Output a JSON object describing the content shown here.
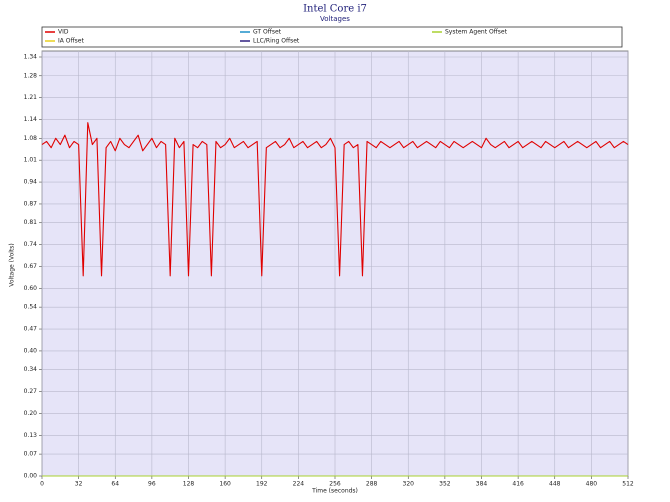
{
  "chart_data": {
    "type": "line",
    "title": "Intel Core i7",
    "subtitle": "Voltages",
    "x_label": "Time (seconds)",
    "y_label": "Voltage (Volts)",
    "xlim": [
      0,
      512
    ],
    "xticks": [
      0,
      32,
      64,
      96,
      128,
      160,
      192,
      224,
      256,
      288,
      320,
      352,
      384,
      416,
      448,
      480,
      512
    ],
    "ylim": [
      0,
      1.34
    ],
    "yticks": [
      {
        "value": 0,
        "label": "0.00"
      },
      {
        "value": 0.07,
        "label": "0.07"
      },
      {
        "value": 0.13,
        "label": "0.13"
      },
      {
        "value": 0.2,
        "label": "0.20"
      },
      {
        "value": 0.27,
        "label": "0.27"
      },
      {
        "value": 0.34,
        "label": "0.34"
      },
      {
        "value": 0.4,
        "label": "0.40"
      },
      {
        "value": 0.47,
        "label": "0.47"
      },
      {
        "value": 0.54,
        "label": "0.54"
      },
      {
        "value": 0.6,
        "label": "0.60"
      },
      {
        "value": 0.67,
        "label": "0.67"
      },
      {
        "value": 0.74,
        "label": "0.74"
      },
      {
        "value": 0.81,
        "label": "0.81"
      },
      {
        "value": 0.87,
        "label": "0.87"
      },
      {
        "value": 0.94,
        "label": "0.94"
      },
      {
        "value": 1.01,
        "label": "1.01"
      },
      {
        "value": 1.08,
        "label": "1.08"
      },
      {
        "value": 1.14,
        "label": "1.14"
      },
      {
        "value": 1.21,
        "label": "1.21"
      },
      {
        "value": 1.28,
        "label": "1.28"
      },
      {
        "value": 1.34,
        "label": "1.34"
      }
    ],
    "grid": true,
    "x": [
      0,
      4,
      8,
      12,
      16,
      20,
      24,
      28,
      32,
      36,
      40,
      44,
      48,
      52,
      56,
      60,
      64,
      68,
      72,
      76,
      80,
      84,
      88,
      92,
      96,
      100,
      104,
      108,
      112,
      116,
      120,
      124,
      128,
      132,
      136,
      140,
      144,
      148,
      152,
      156,
      160,
      164,
      168,
      172,
      176,
      180,
      184,
      188,
      192,
      196,
      200,
      204,
      208,
      212,
      216,
      220,
      224,
      228,
      232,
      236,
      240,
      244,
      248,
      252,
      256,
      260,
      264,
      268,
      272,
      276,
      280,
      284,
      288,
      292,
      296,
      300,
      304,
      308,
      312,
      316,
      320,
      324,
      328,
      332,
      336,
      340,
      344,
      348,
      352,
      356,
      360,
      364,
      368,
      372,
      376,
      380,
      384,
      388,
      392,
      396,
      400,
      404,
      408,
      412,
      416,
      420,
      424,
      428,
      432,
      436,
      440,
      444,
      448,
      452,
      456,
      460,
      464,
      468,
      472,
      476,
      480,
      484,
      488,
      492,
      496,
      500,
      504,
      508,
      512
    ],
    "series": [
      {
        "name": "VID",
        "color": "#e00000",
        "values": [
          1.06,
          1.07,
          1.05,
          1.08,
          1.06,
          1.09,
          1.05,
          1.07,
          1.06,
          0.64,
          1.13,
          1.06,
          1.08,
          0.64,
          1.05,
          1.07,
          1.04,
          1.08,
          1.06,
          1.05,
          1.07,
          1.09,
          1.04,
          1.06,
          1.08,
          1.05,
          1.07,
          1.06,
          0.64,
          1.08,
          1.05,
          1.07,
          0.64,
          1.06,
          1.05,
          1.07,
          1.06,
          0.64,
          1.07,
          1.05,
          1.06,
          1.08,
          1.05,
          1.06,
          1.07,
          1.05,
          1.06,
          1.07,
          0.64,
          1.05,
          1.06,
          1.07,
          1.05,
          1.06,
          1.08,
          1.05,
          1.06,
          1.07,
          1.05,
          1.06,
          1.07,
          1.05,
          1.06,
          1.08,
          1.05,
          0.64,
          1.06,
          1.07,
          1.05,
          1.06,
          0.64,
          1.07,
          1.06,
          1.05,
          1.07,
          1.06,
          1.05,
          1.06,
          1.07,
          1.05,
          1.06,
          1.07,
          1.05,
          1.06,
          1.07,
          1.06,
          1.05,
          1.07,
          1.06,
          1.05,
          1.07,
          1.06,
          1.05,
          1.06,
          1.07,
          1.06,
          1.05,
          1.08,
          1.06,
          1.05,
          1.06,
          1.07,
          1.05,
          1.06,
          1.07,
          1.05,
          1.06,
          1.07,
          1.06,
          1.05,
          1.07,
          1.06,
          1.05,
          1.06,
          1.07,
          1.05,
          1.06,
          1.07,
          1.06,
          1.05,
          1.06,
          1.07,
          1.05,
          1.06,
          1.07,
          1.05,
          1.06,
          1.07,
          1.06
        ]
      },
      {
        "name": "GT Offset",
        "color": "#1e90c8",
        "values": [
          0,
          0,
          0,
          0,
          0,
          0,
          0,
          0,
          0,
          0,
          0,
          0,
          0,
          0,
          0,
          0,
          0,
          0,
          0,
          0,
          0,
          0,
          0,
          0,
          0,
          0,
          0,
          0,
          0,
          0,
          0,
          0,
          0,
          0,
          0,
          0,
          0,
          0,
          0,
          0,
          0,
          0,
          0,
          0,
          0,
          0,
          0,
          0,
          0,
          0,
          0,
          0,
          0,
          0,
          0,
          0,
          0,
          0,
          0,
          0,
          0,
          0,
          0,
          0,
          0,
          0,
          0,
          0,
          0,
          0,
          0,
          0,
          0,
          0,
          0,
          0,
          0,
          0,
          0,
          0,
          0,
          0,
          0,
          0,
          0,
          0,
          0,
          0,
          0,
          0,
          0,
          0,
          0,
          0,
          0,
          0,
          0,
          0,
          0,
          0,
          0,
          0,
          0,
          0,
          0,
          0,
          0,
          0,
          0,
          0,
          0,
          0,
          0,
          0,
          0,
          0,
          0,
          0,
          0,
          0,
          0,
          0,
          0,
          0,
          0,
          0,
          0,
          0,
          0
        ]
      },
      {
        "name": "System Agent Offset",
        "color": "#a8d030",
        "values": [
          0,
          0,
          0,
          0,
          0,
          0,
          0,
          0,
          0,
          0,
          0,
          0,
          0,
          0,
          0,
          0,
          0,
          0,
          0,
          0,
          0,
          0,
          0,
          0,
          0,
          0,
          0,
          0,
          0,
          0,
          0,
          0,
          0,
          0,
          0,
          0,
          0,
          0,
          0,
          0,
          0,
          0,
          0,
          0,
          0,
          0,
          0,
          0,
          0,
          0,
          0,
          0,
          0,
          0,
          0,
          0,
          0,
          0,
          0,
          0,
          0,
          0,
          0,
          0,
          0,
          0,
          0,
          0,
          0,
          0,
          0,
          0,
          0,
          0,
          0,
          0,
          0,
          0,
          0,
          0,
          0,
          0,
          0,
          0,
          0,
          0,
          0,
          0,
          0,
          0,
          0,
          0,
          0,
          0,
          0,
          0,
          0,
          0,
          0,
          0,
          0,
          0,
          0,
          0,
          0,
          0,
          0,
          0,
          0,
          0,
          0,
          0,
          0,
          0,
          0,
          0,
          0,
          0,
          0,
          0,
          0,
          0,
          0,
          0,
          0,
          0,
          0,
          0,
          0
        ]
      },
      {
        "name": "IA Offset",
        "color": "#e8d020",
        "values": [
          0,
          0,
          0,
          0,
          0,
          0,
          0,
          0,
          0,
          0,
          0,
          0,
          0,
          0,
          0,
          0,
          0,
          0,
          0,
          0,
          0,
          0,
          0,
          0,
          0,
          0,
          0,
          0,
          0,
          0,
          0,
          0,
          0,
          0,
          0,
          0,
          0,
          0,
          0,
          0,
          0,
          0,
          0,
          0,
          0,
          0,
          0,
          0,
          0,
          0,
          0,
          0,
          0,
          0,
          0,
          0,
          0,
          0,
          0,
          0,
          0,
          0,
          0,
          0,
          0,
          0,
          0,
          0,
          0,
          0,
          0,
          0,
          0,
          0,
          0,
          0,
          0,
          0,
          0,
          0,
          0,
          0,
          0,
          0,
          0,
          0,
          0,
          0,
          0,
          0,
          0,
          0,
          0,
          0,
          0,
          0,
          0,
          0,
          0,
          0,
          0,
          0,
          0,
          0,
          0,
          0,
          0,
          0,
          0,
          0,
          0,
          0,
          0,
          0,
          0,
          0,
          0,
          0,
          0,
          0,
          0,
          0,
          0,
          0,
          0,
          0,
          0,
          0,
          0
        ]
      },
      {
        "name": "LLC/Ring Offset",
        "color": "#302080",
        "values": [
          0,
          0,
          0,
          0,
          0,
          0,
          0,
          0,
          0,
          0,
          0,
          0,
          0,
          0,
          0,
          0,
          0,
          0,
          0,
          0,
          0,
          0,
          0,
          0,
          0,
          0,
          0,
          0,
          0,
          0,
          0,
          0,
          0,
          0,
          0,
          0,
          0,
          0,
          0,
          0,
          0,
          0,
          0,
          0,
          0,
          0,
          0,
          0,
          0,
          0,
          0,
          0,
          0,
          0,
          0,
          0,
          0,
          0,
          0,
          0,
          0,
          0,
          0,
          0,
          0,
          0,
          0,
          0,
          0,
          0,
          0,
          0,
          0,
          0,
          0,
          0,
          0,
          0,
          0,
          0,
          0,
          0,
          0,
          0,
          0,
          0,
          0,
          0,
          0,
          0,
          0,
          0,
          0,
          0,
          0,
          0,
          0,
          0,
          0,
          0,
          0,
          0,
          0,
          0,
          0,
          0,
          0,
          0,
          0,
          0,
          0,
          0,
          0,
          0,
          0,
          0,
          0,
          0,
          0,
          0,
          0,
          0,
          0,
          0,
          0,
          0,
          0,
          0,
          0
        ]
      }
    ]
  }
}
